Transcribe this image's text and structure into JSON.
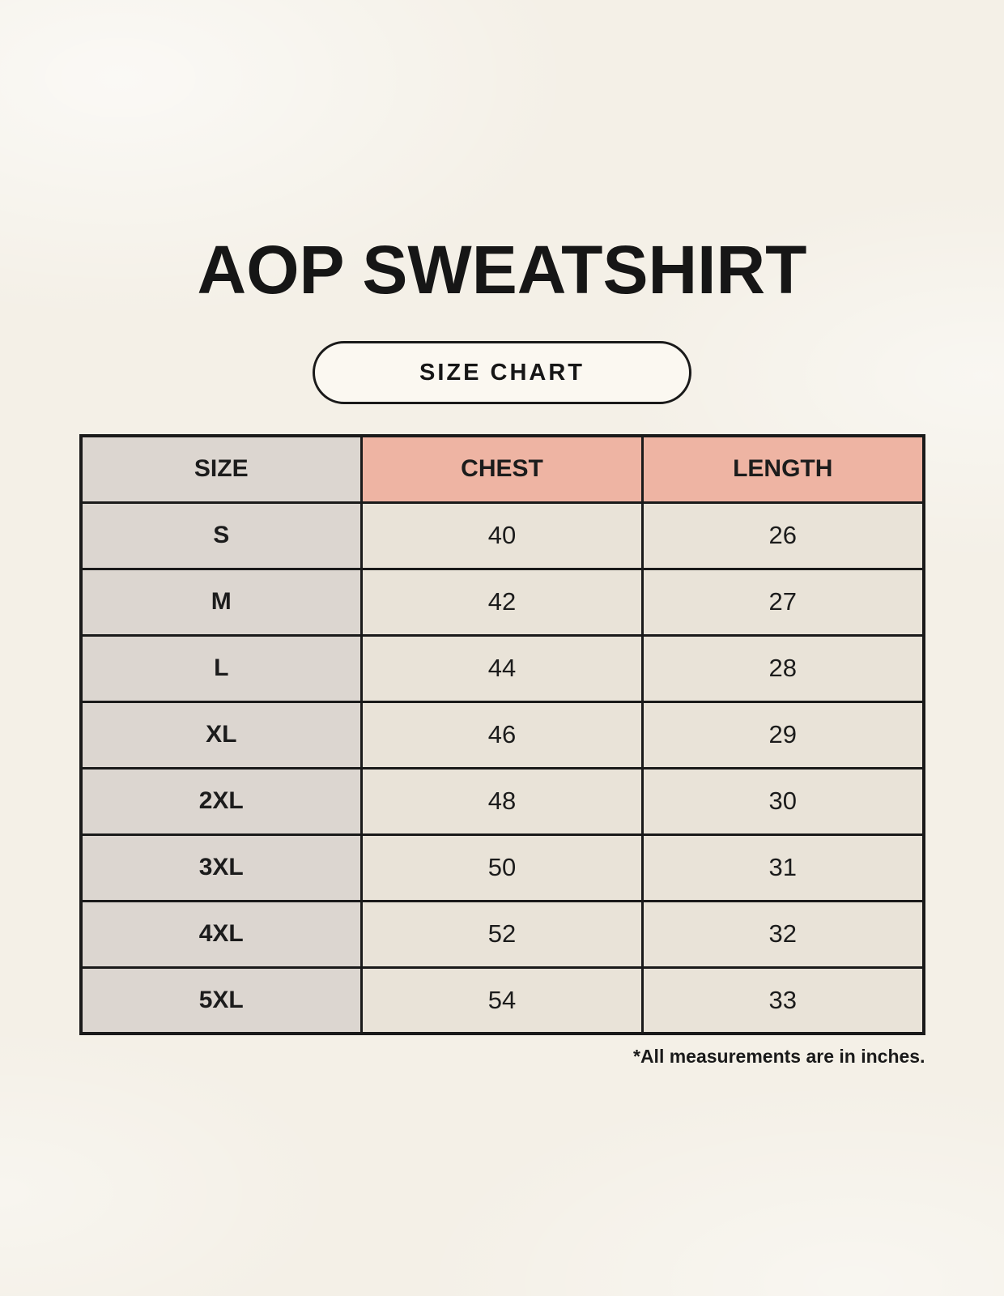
{
  "title": "AOP SWEATSHIRT",
  "badge": {
    "label": "SIZE CHART"
  },
  "chart_data": {
    "type": "table",
    "title": "AOP SWEATSHIRT",
    "subtitle": "SIZE CHART",
    "columns": [
      "SIZE",
      "CHEST",
      "LENGTH"
    ],
    "rows": [
      [
        "S",
        40,
        26
      ],
      [
        "M",
        42,
        27
      ],
      [
        "L",
        44,
        28
      ],
      [
        "XL",
        46,
        29
      ],
      [
        "2XL",
        48,
        30
      ],
      [
        "3XL",
        50,
        31
      ],
      [
        "4XL",
        52,
        32
      ],
      [
        "5XL",
        54,
        33
      ]
    ],
    "units": "inches",
    "note": "*All measurements are in inches."
  },
  "table": {
    "columns": [
      "SIZE",
      "CHEST",
      "LENGTH"
    ],
    "rows": [
      {
        "size": "S",
        "chest": "40",
        "length": "26"
      },
      {
        "size": "M",
        "chest": "42",
        "length": "27"
      },
      {
        "size": "L",
        "chest": "44",
        "length": "28"
      },
      {
        "size": "XL",
        "chest": "46",
        "length": "29"
      },
      {
        "size": "2XL",
        "chest": "48",
        "length": "30"
      },
      {
        "size": "3XL",
        "chest": "50",
        "length": "31"
      },
      {
        "size": "4XL",
        "chest": "52",
        "length": "32"
      },
      {
        "size": "5XL",
        "chest": "54",
        "length": "33"
      }
    ]
  },
  "footnote": "*All measurements are in inches.",
  "colors": {
    "background": "#f4f0e7",
    "accent_salmon": "#eeb4a3",
    "cell_gray": "#dcd6d0",
    "cell_beige": "#e9e3d8",
    "border": "#1a1a1a",
    "text": "#1c1c1c",
    "badge_background": "#fbf8f1"
  }
}
